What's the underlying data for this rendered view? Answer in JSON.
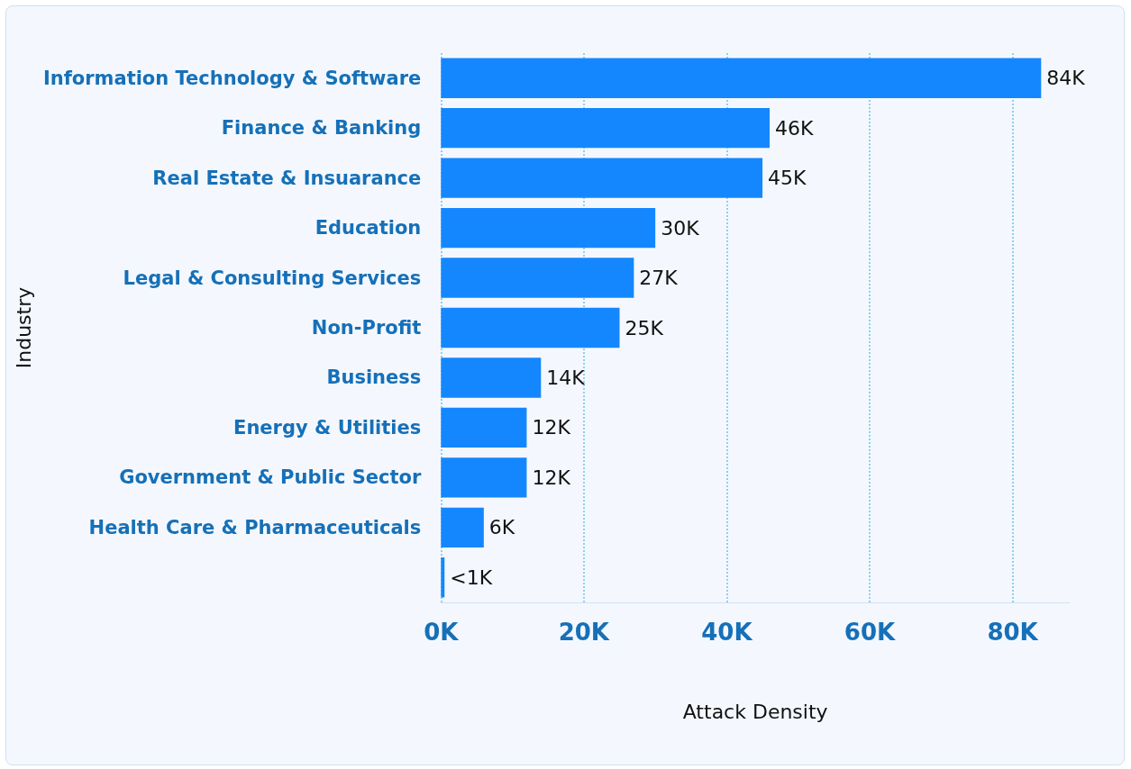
{
  "chart_data": {
    "type": "bar",
    "orientation": "horizontal",
    "xlabel": "Attack Density",
    "ylabel": "Industry",
    "categories": [
      "Information Technology & Software",
      "Finance & Banking",
      "Real Estate & Insuarance",
      "Education",
      "Legal & Consulting Services",
      "Non-Profit",
      "Business",
      "Energy & Utilities",
      "Government & Public Sector",
      "Health Care & Pharmaceuticals",
      null
    ],
    "values": [
      84,
      46,
      45,
      30,
      27,
      25,
      14,
      12,
      12,
      6,
      0.5
    ],
    "value_labels": [
      "84K",
      "46K",
      "45K",
      "30K",
      "27K",
      "25K",
      "14K",
      "12K",
      "12K",
      "6K",
      "<1K"
    ],
    "color": "#1487ff",
    "xticks": [
      {
        "value": 0,
        "label": "0K"
      },
      {
        "value": 20,
        "label": "20K"
      },
      {
        "value": 40,
        "label": "40K"
      },
      {
        "value": 60,
        "label": "60K"
      },
      {
        "value": 80,
        "label": "80K"
      }
    ],
    "xlim": [
      0,
      88
    ],
    "grid": "x"
  }
}
